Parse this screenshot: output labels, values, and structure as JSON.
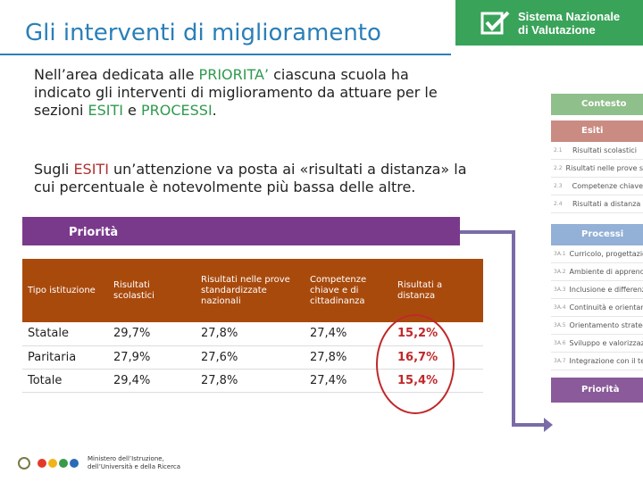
{
  "header": {
    "title": "Gli interventi di miglioramento"
  },
  "brand": {
    "line1": "Sistema Nazionale",
    "line2": "di Valutazione",
    "color": "#3aa35a"
  },
  "paragraph1": {
    "t1": "Nell’area dedicata alle ",
    "k1": "PRIORITA’",
    "t2": " ciascuna scuola ha indicato gli interventi di miglioramento da attuare per le sezioni ",
    "k2": "ESITI",
    "t3": " e ",
    "k3": "PROCESSI",
    "t4": "."
  },
  "paragraph2": {
    "t1": "Sugli ",
    "k1": "ESITI",
    "t2": " un’attenzione va posta ai «risultati a distanza» la cui percentuale è notevolmente più bassa delle altre."
  },
  "priority_bar": {
    "label": "Priorità",
    "color": "#7a3a8c"
  },
  "table": {
    "headers": [
      "Tipo istituzione",
      "Risultati scolastici",
      "Risultati nelle prove standardizzate nazionali",
      "Competenze chiave e di cittadinanza",
      "Risultati a distanza"
    ],
    "rows": [
      [
        "Statale",
        "29,7%",
        "27,8%",
        "27,4%",
        "15,2%"
      ],
      [
        "Paritaria",
        "27,9%",
        "27,6%",
        "27,8%",
        "16,7%"
      ],
      [
        "Totale",
        "29,4%",
        "27,8%",
        "27,4%",
        "15,4%"
      ]
    ]
  },
  "sidebar": {
    "contesto": "Contesto",
    "esiti": "Esiti",
    "esiti_items": [
      {
        "num": "2.1",
        "label": "Risultati scolastici"
      },
      {
        "num": "2.2",
        "label": "Risultati nelle prove standardizzate"
      },
      {
        "num": "2.3",
        "label": "Competenze chiave"
      },
      {
        "num": "2.4",
        "label": "Risultati a distanza"
      }
    ],
    "processi": "Processi",
    "processi_items": [
      {
        "num": "3A.1",
        "label": "Curricolo, progettazione"
      },
      {
        "num": "3A.2",
        "label": "Ambiente di apprendimento"
      },
      {
        "num": "3A.3",
        "label": "Inclusione e differenziazione"
      },
      {
        "num": "3A.4",
        "label": "Continuità e orientamento"
      },
      {
        "num": "3A.5",
        "label": "Orientamento strategico"
      },
      {
        "num": "3A.6",
        "label": "Sviluppo e valorizzazione"
      },
      {
        "num": "3A.7",
        "label": "Integrazione con il territorio"
      }
    ],
    "priorita": "Priorità"
  },
  "footer": {
    "line1": "Ministero dell’Istruzione,",
    "line2": "dell’Università e della Ricerca"
  }
}
